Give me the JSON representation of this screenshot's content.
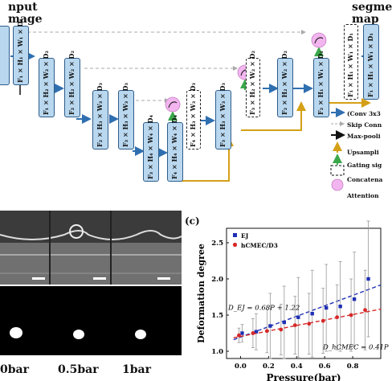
{
  "top": {
    "input_title_line1": "nput",
    "input_title_line2": "mage",
    "output_title_line1": "segme",
    "output_title_line2": "map",
    "blocks": [
      {
        "label": "F₁ × H₁ × W₁ × D₁"
      },
      {
        "label": "F₁ × H₂ × W₂ × D₂"
      },
      {
        "label": "F₂ × H₂ × W₂ × D₂"
      },
      {
        "label": "F₂ × H₃ × W₃ × D₃"
      },
      {
        "label": "F₃ × H₃ × W₃ × D₃"
      },
      {
        "label": "F₃ × H₄ × W₄ × D₄"
      },
      {
        "label": "F₄ × H₄ × W₄ × D₄"
      },
      {
        "label": "F₄ × H₃ × W₃ × D₃"
      },
      {
        "label": "F₃ × H₃ × W₃ × D₃"
      },
      {
        "label": "F₃ × H₂ × W₂ × D₂"
      },
      {
        "label": "F₂ × H₂ × W₂ × D₂"
      },
      {
        "label": "F₂ × H₁ × W₁ × D₁"
      },
      {
        "label": "F₁ × H₁ × W₁ × D₁"
      },
      {
        "label": "F₁ × H₁ × W₁ × D₁"
      }
    ],
    "legend": [
      {
        "text": "(Conv 3x3",
        "color": "#2f6fb0"
      },
      {
        "text": "Skip Conn",
        "color": "#aaaaaa"
      },
      {
        "text": "Max-pooli",
        "color": "#111111"
      },
      {
        "text": "Upsampli",
        "color": "#d4a017"
      },
      {
        "text": "Gating sig",
        "color": "#3aa84a"
      },
      {
        "text": "Concatena",
        "color": "#111111"
      },
      {
        "text": "Attention",
        "color": "#e6a0e0"
      }
    ]
  },
  "bottom_left": {
    "labels": [
      "0bar",
      "0.5bar",
      "1bar"
    ]
  },
  "chart_data": {
    "type": "scatter",
    "panel_label": "(c)",
    "ylabel": "Deformation degree",
    "xlabel": "Pressure(bar)",
    "xlim": [
      -0.1,
      1.0
    ],
    "ylim": [
      0.9,
      2.7
    ],
    "x_ticks": [
      "0.0",
      "0.2",
      "0.4",
      "0.6",
      "0.8"
    ],
    "y_ticks": [
      "1.0",
      "1.5",
      "2.0",
      "2.5"
    ],
    "series": [
      {
        "name": "EJ",
        "color": "#1f2fb5",
        "marker": "square",
        "x": [
          0.0,
          0.1,
          0.2,
          0.3,
          0.4,
          0.5,
          0.6,
          0.7,
          0.8,
          0.9
        ],
        "y": [
          1.25,
          1.27,
          1.35,
          1.4,
          1.47,
          1.52,
          1.6,
          1.62,
          1.72,
          2.0
        ],
        "err": [
          0.12,
          0.25,
          0.45,
          0.5,
          0.55,
          0.6,
          0.6,
          0.62,
          0.65,
          0.8
        ]
      },
      {
        "name": "hCMEC/D3",
        "color": "#d62828",
        "marker": "circle",
        "x": [
          0.0,
          0.1,
          0.2,
          0.3,
          0.4,
          0.5,
          0.6,
          0.7,
          0.8,
          0.9
        ],
        "y": [
          1.22,
          1.25,
          1.28,
          1.3,
          1.36,
          1.38,
          1.42,
          1.47,
          1.5,
          1.57
        ],
        "err": [
          0.1,
          0.2,
          0.3,
          0.35,
          0.4,
          0.42,
          0.45,
          0.45,
          0.5,
          0.55
        ]
      }
    ],
    "annotations": [
      {
        "text": "D_EJ = 0.68P + 1.22"
      },
      {
        "text": "D_hCMEC = 0.41P"
      }
    ]
  }
}
